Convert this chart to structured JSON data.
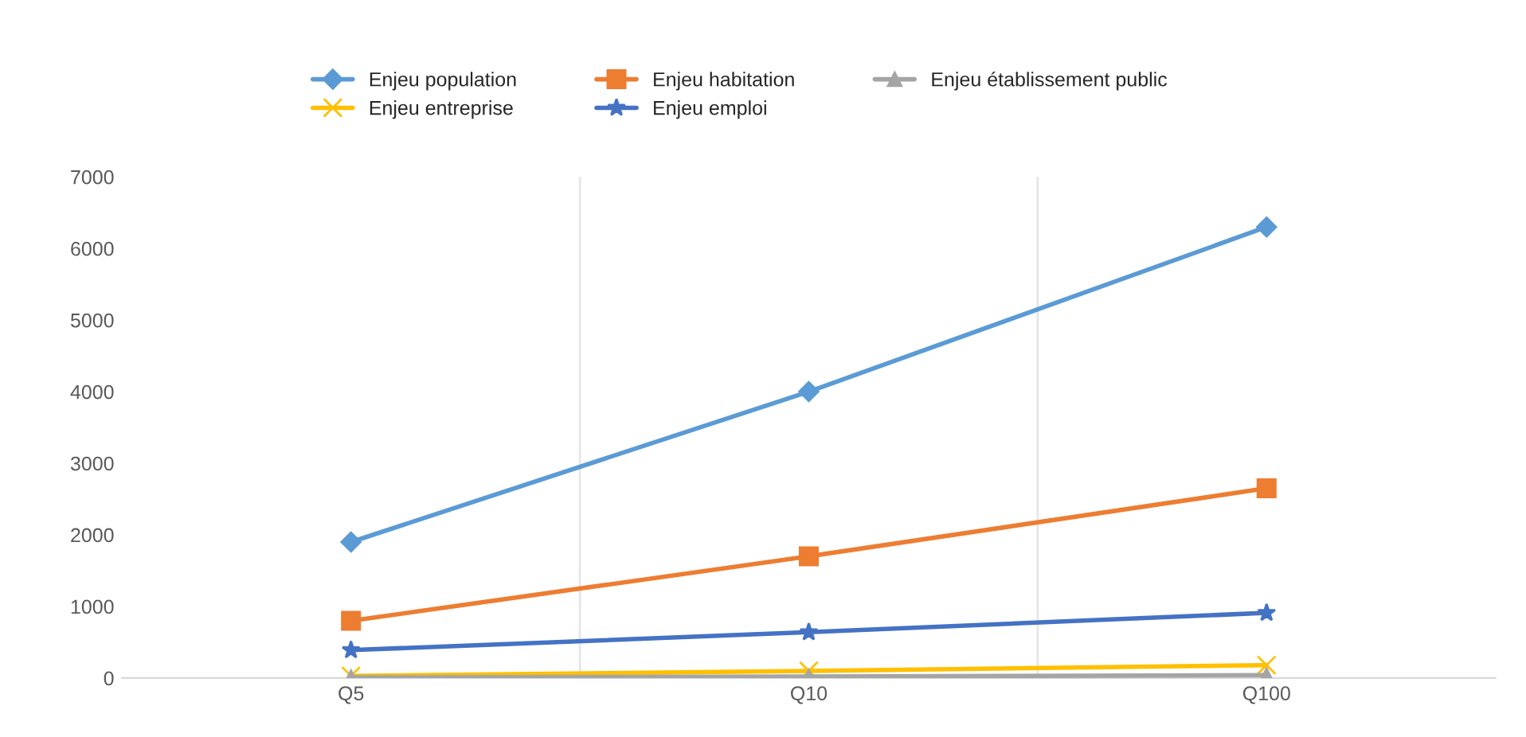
{
  "chart_data": {
    "type": "line",
    "categories": [
      "Q5",
      "Q10",
      "Q100"
    ],
    "series": [
      {
        "name": "Enjeu population",
        "color": "#5b9bd5",
        "marker": "diamond",
        "values": [
          1900,
          4000,
          6300
        ]
      },
      {
        "name": "Enjeu habitation",
        "color": "#ed7d31",
        "marker": "square",
        "values": [
          800,
          1700,
          2650
        ]
      },
      {
        "name": "Enjeu établissement public",
        "color": "#a5a5a5",
        "marker": "triangle",
        "values": [
          10,
          20,
          40
        ]
      },
      {
        "name": "Enjeu entreprise",
        "color": "#ffc000",
        "marker": "cross",
        "values": [
          30,
          100,
          180
        ]
      },
      {
        "name": "Enjeu emploi",
        "color": "#4472c4",
        "marker": "star",
        "values": [
          390,
          640,
          910
        ]
      }
    ],
    "ylim": [
      0,
      7000
    ],
    "yticks": [
      0,
      1000,
      2000,
      3000,
      4000,
      5000,
      6000,
      7000
    ],
    "grid": "x",
    "legend": "top"
  }
}
